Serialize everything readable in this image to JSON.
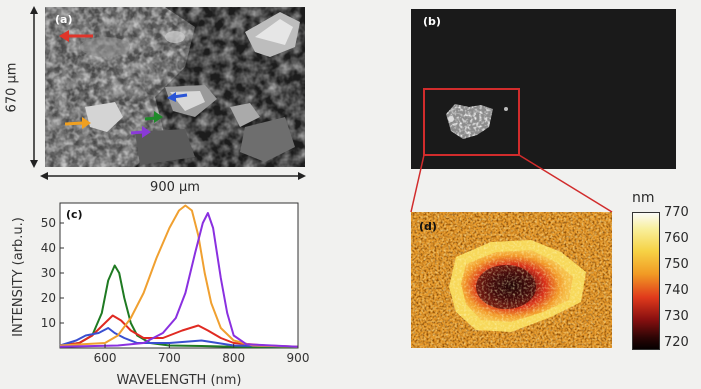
{
  "figure": {
    "panels": {
      "a": "(a)",
      "b": "(b)",
      "c": "(c)",
      "d": "(d)"
    },
    "dimensions": {
      "height_label": "670 µm",
      "width_label": "900 µm"
    },
    "arrows": [
      {
        "color": "#e0342a",
        "icon": "arrow-icon"
      },
      {
        "color": "#2a55d6",
        "icon": "arrow-icon"
      },
      {
        "color": "#f0a020",
        "icon": "arrow-icon"
      },
      {
        "color": "#1f8a2a",
        "icon": "arrow-icon"
      },
      {
        "color": "#8a3ad8",
        "icon": "arrow-icon"
      }
    ],
    "colorbar": {
      "unit": "nm",
      "ticks": [
        "770",
        "760",
        "750",
        "740",
        "730",
        "720"
      ],
      "range": [
        720,
        770
      ]
    },
    "highlight_color": "#d12c2c"
  },
  "chart_data": {
    "type": "line",
    "title": "",
    "xlabel": "WAVELENGTH (nm)",
    "ylabel": "INTENSITY (arb.u.)",
    "xlim": [
      530,
      900
    ],
    "ylim": [
      0,
      58
    ],
    "x_ticks": [
      "600",
      "700",
      "800",
      "900"
    ],
    "y_ticks": [
      "10",
      "20",
      "30",
      "40",
      "50"
    ],
    "grid": false,
    "series": [
      {
        "color": "#1f7a22",
        "points": [
          [
            530,
            1
          ],
          [
            560,
            2
          ],
          [
            580,
            5
          ],
          [
            595,
            14
          ],
          [
            605,
            27
          ],
          [
            615,
            33
          ],
          [
            622,
            30
          ],
          [
            630,
            20
          ],
          [
            640,
            10
          ],
          [
            650,
            5
          ],
          [
            670,
            2
          ],
          [
            700,
            1
          ],
          [
            750,
            0.8
          ],
          [
            800,
            0.5
          ],
          [
            900,
            0.3
          ]
        ]
      },
      {
        "color": "#e02a22",
        "points": [
          [
            530,
            1
          ],
          [
            560,
            2
          ],
          [
            580,
            5
          ],
          [
            600,
            10
          ],
          [
            612,
            13
          ],
          [
            625,
            11
          ],
          [
            640,
            7
          ],
          [
            660,
            4
          ],
          [
            690,
            4
          ],
          [
            720,
            7
          ],
          [
            745,
            9
          ],
          [
            760,
            7
          ],
          [
            780,
            4
          ],
          [
            800,
            2
          ],
          [
            850,
            1
          ],
          [
            900,
            0.5
          ]
        ]
      },
      {
        "color": "#3a4fd0",
        "points": [
          [
            530,
            1
          ],
          [
            555,
            3
          ],
          [
            570,
            5
          ],
          [
            590,
            6
          ],
          [
            605,
            8
          ],
          [
            615,
            6
          ],
          [
            630,
            4
          ],
          [
            650,
            2
          ],
          [
            700,
            2
          ],
          [
            750,
            3
          ],
          [
            800,
            1
          ],
          [
            900,
            0.5
          ]
        ]
      },
      {
        "color": "#f0a030",
        "points": [
          [
            530,
            1
          ],
          [
            600,
            2
          ],
          [
            620,
            5
          ],
          [
            640,
            12
          ],
          [
            660,
            22
          ],
          [
            680,
            36
          ],
          [
            700,
            48
          ],
          [
            715,
            55
          ],
          [
            725,
            57
          ],
          [
            735,
            55
          ],
          [
            745,
            45
          ],
          [
            755,
            30
          ],
          [
            765,
            18
          ],
          [
            780,
            8
          ],
          [
            800,
            3
          ],
          [
            830,
            1
          ],
          [
            900,
            0.5
          ]
        ]
      },
      {
        "color": "#8a30e0",
        "points": [
          [
            530,
            0.5
          ],
          [
            620,
            1
          ],
          [
            660,
            2
          ],
          [
            690,
            6
          ],
          [
            710,
            12
          ],
          [
            725,
            22
          ],
          [
            740,
            38
          ],
          [
            752,
            50
          ],
          [
            760,
            54
          ],
          [
            768,
            48
          ],
          [
            780,
            28
          ],
          [
            790,
            14
          ],
          [
            800,
            5
          ],
          [
            820,
            1.5
          ],
          [
            900,
            0.5
          ]
        ]
      }
    ]
  }
}
